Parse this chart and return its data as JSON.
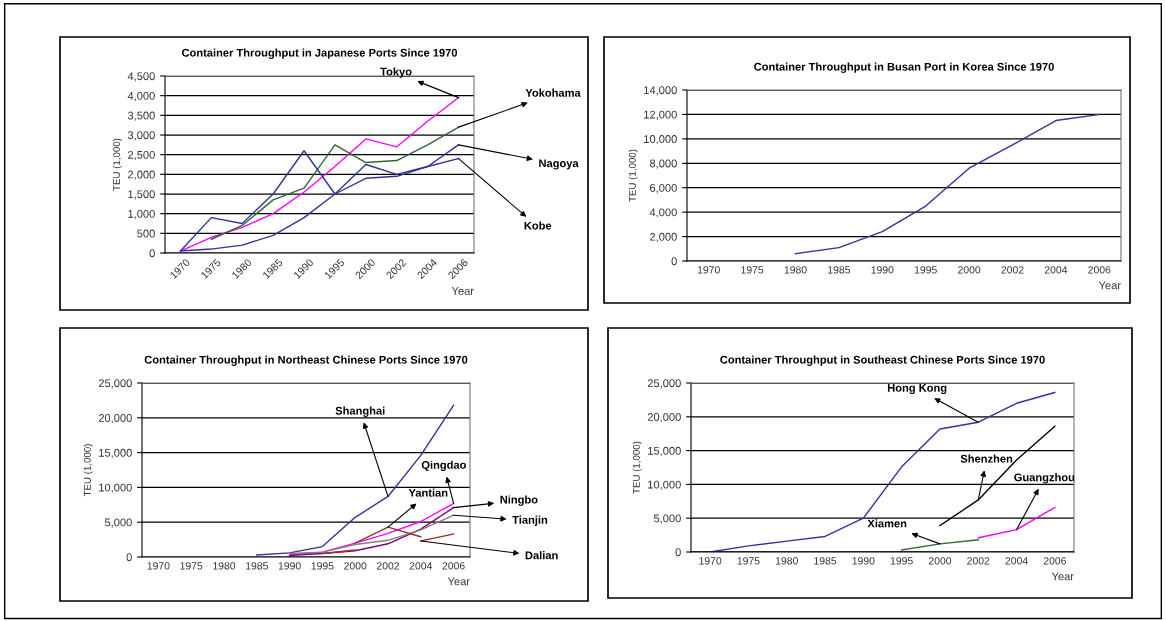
{
  "chart_data": [
    {
      "type": "line",
      "title": "Container Throughput in Japanese Ports Since 1970",
      "xlabel": "Year",
      "ylabel": "TEU (1,000)",
      "categories": [
        "1970",
        "1975",
        "1980",
        "1985",
        "1990",
        "1995",
        "2000",
        "2002",
        "2004",
        "2006"
      ],
      "ylim": [
        0,
        4500
      ],
      "yticks": [
        0,
        {
          "value": 500,
          "label": "500"
        },
        {
          "value": 1000,
          "label": "1,000"
        },
        {
          "value": 1500,
          "label": "1,500"
        },
        {
          "value": 2000,
          "label": "2,000"
        },
        {
          "value": 2500,
          "label": "2,500"
        },
        {
          "value": 3000,
          "label": "3,000"
        },
        {
          "value": 3500,
          "label": "3,500"
        },
        {
          "value": 4000,
          "label": "4,000"
        },
        {
          "value": 4500,
          "label": "4,500"
        }
      ],
      "grid": "y",
      "legend": false,
      "series": [
        {
          "color": "#ff00ff",
          "values": [
            50,
            400,
            650,
            1000,
            1550,
            2200,
            2900,
            2700,
            3350,
            3950
          ]
        },
        {
          "color": "#336633",
          "values": [
            null,
            350,
            700,
            1350,
            1650,
            2750,
            2300,
            2350,
            2750,
            3200
          ]
        },
        {
          "color": "#333399",
          "values": [
            50,
            900,
            750,
            1500,
            2600,
            1500,
            2250,
            2000,
            2200,
            2750
          ]
        },
        {
          "color": "#333399",
          "values": [
            50,
            100,
            200,
            450,
            900,
            1500,
            1900,
            1950,
            2200,
            2400
          ]
        }
      ],
      "annotations": [
        {
          "text": "Tokyo",
          "x": "2006",
          "y": 3950
        },
        {
          "text": "Yokohama",
          "x": "2006",
          "y": 3200
        },
        {
          "text": "Nagoya",
          "x": "2006",
          "y": 2750
        },
        {
          "text": "Kobe",
          "x": "2006",
          "y": 2400
        }
      ]
    },
    {
      "type": "line",
      "title": "Container Throughput in Busan Port in Korea Since 1970",
      "xlabel": "Year",
      "ylabel": "TEU (1,000)",
      "categories": [
        "1970",
        "1975",
        "1980",
        "1985",
        "1990",
        "1995",
        "2000",
        "2002",
        "2004",
        "2006"
      ],
      "ylim": [
        0,
        14000
      ],
      "yticks": [
        0,
        {
          "value": 2000,
          "label": "2,000"
        },
        {
          "value": 4000,
          "label": "4,000"
        },
        {
          "value": 6000,
          "label": "6,000"
        },
        {
          "value": 8000,
          "label": "8,000"
        },
        {
          "value": 10000,
          "label": "10,000"
        },
        {
          "value": 12000,
          "label": "12,000"
        },
        {
          "value": 14000,
          "label": "14,000"
        }
      ],
      "grid": "y",
      "legend": false,
      "series": [
        {
          "color": "#333399",
          "values": [
            null,
            null,
            600,
            1100,
            2400,
            4500,
            7600,
            9500,
            11500,
            12000
          ]
        }
      ]
    },
    {
      "type": "line",
      "title": "Container Throughput in Northeast Chinese Ports Since 1970",
      "xlabel": "Year",
      "ylabel": "TEU (1,000)",
      "categories": [
        "1970",
        "1975",
        "1980",
        "1985",
        "1990",
        "1995",
        "2000",
        "2002",
        "2004",
        "2006"
      ],
      "ylim": [
        0,
        25000
      ],
      "yticks": [
        0,
        {
          "value": 5000,
          "label": "5,000"
        },
        {
          "value": 10000,
          "label": "10,000"
        },
        {
          "value": 15000,
          "label": "15,000"
        },
        {
          "value": 20000,
          "label": "20,000"
        },
        {
          "value": 25000,
          "label": "25,000"
        }
      ],
      "grid": "y",
      "legend": false,
      "series": [
        {
          "color": "#333399",
          "values": [
            null,
            null,
            null,
            300,
            600,
            1500,
            5700,
            8700,
            14600,
            21800
          ]
        },
        {
          "color": "#ff00ff",
          "values": [
            null,
            null,
            null,
            null,
            300,
            700,
            2000,
            3400,
            5100,
            7700
          ]
        },
        {
          "color": "#800080",
          "values": [
            null,
            null,
            null,
            null,
            200,
            500,
            900,
            1900,
            4000,
            7100
          ]
        },
        {
          "color": "#808080",
          "values": [
            null,
            null,
            null,
            null,
            500,
            700,
            1800,
            2400,
            3900,
            6000
          ]
        },
        {
          "color": "#993333",
          "values": [
            null,
            null,
            null,
            null,
            null,
            null,
            2000,
            4300,
            2900,
            null
          ]
        },
        {
          "color": "#993333",
          "values": [
            null,
            null,
            null,
            null,
            null,
            500,
            1000,
            null,
            2300,
            3300
          ]
        }
      ],
      "annotations": [
        {
          "text": "Shanghai",
          "x": "2002",
          "y": 8700
        },
        {
          "text": "Qingdao",
          "x": "2006",
          "y": 7700
        },
        {
          "text": "Yantian",
          "x": "2002",
          "y": 4300
        },
        {
          "text": "Ningbo",
          "x": "2006",
          "y": 7100
        },
        {
          "text": "Tianjin",
          "x": "2006",
          "y": 6000
        },
        {
          "text": "Dalian",
          "x": "2004",
          "y": 2300
        }
      ]
    },
    {
      "type": "line",
      "title": "Container Throughput in Southeast Chinese Ports Since 1970",
      "xlabel": "Year",
      "ylabel": "TEU (1,000)",
      "categories": [
        "1970",
        "1975",
        "1980",
        "1985",
        "1990",
        "1995",
        "2000",
        "2002",
        "2004",
        "2006"
      ],
      "ylim": [
        0,
        25000
      ],
      "yticks": [
        0,
        {
          "value": 5000,
          "label": "5,000"
        },
        {
          "value": 10000,
          "label": "10,000"
        },
        {
          "value": 15000,
          "label": "15,000"
        },
        {
          "value": 20000,
          "label": "20,000"
        },
        {
          "value": 25000,
          "label": "25,000"
        }
      ],
      "grid": "y",
      "legend": false,
      "series": [
        {
          "color": "#333399",
          "values": [
            0,
            900,
            1600,
            2300,
            5000,
            12600,
            18200,
            19200,
            22000,
            23600
          ]
        },
        {
          "color": "#000000",
          "values": [
            null,
            null,
            null,
            null,
            null,
            null,
            3900,
            7700,
            13600,
            18600
          ]
        },
        {
          "color": "#336633",
          "values": [
            null,
            null,
            null,
            null,
            null,
            300,
            1200,
            1800,
            null,
            null
          ]
        },
        {
          "color": "#ff00ff",
          "values": [
            null,
            null,
            null,
            null,
            null,
            null,
            null,
            2100,
            3300,
            6600
          ]
        }
      ],
      "annotations": [
        {
          "text": "Hong Kong",
          "x": "2002",
          "y": 19200
        },
        {
          "text": "Shenzhen",
          "x": "2002",
          "y": 7700
        },
        {
          "text": "Xiamen",
          "x": "2000",
          "y": 1200
        },
        {
          "text": "Guangzhou",
          "x": "2004",
          "y": 3300
        }
      ]
    }
  ]
}
